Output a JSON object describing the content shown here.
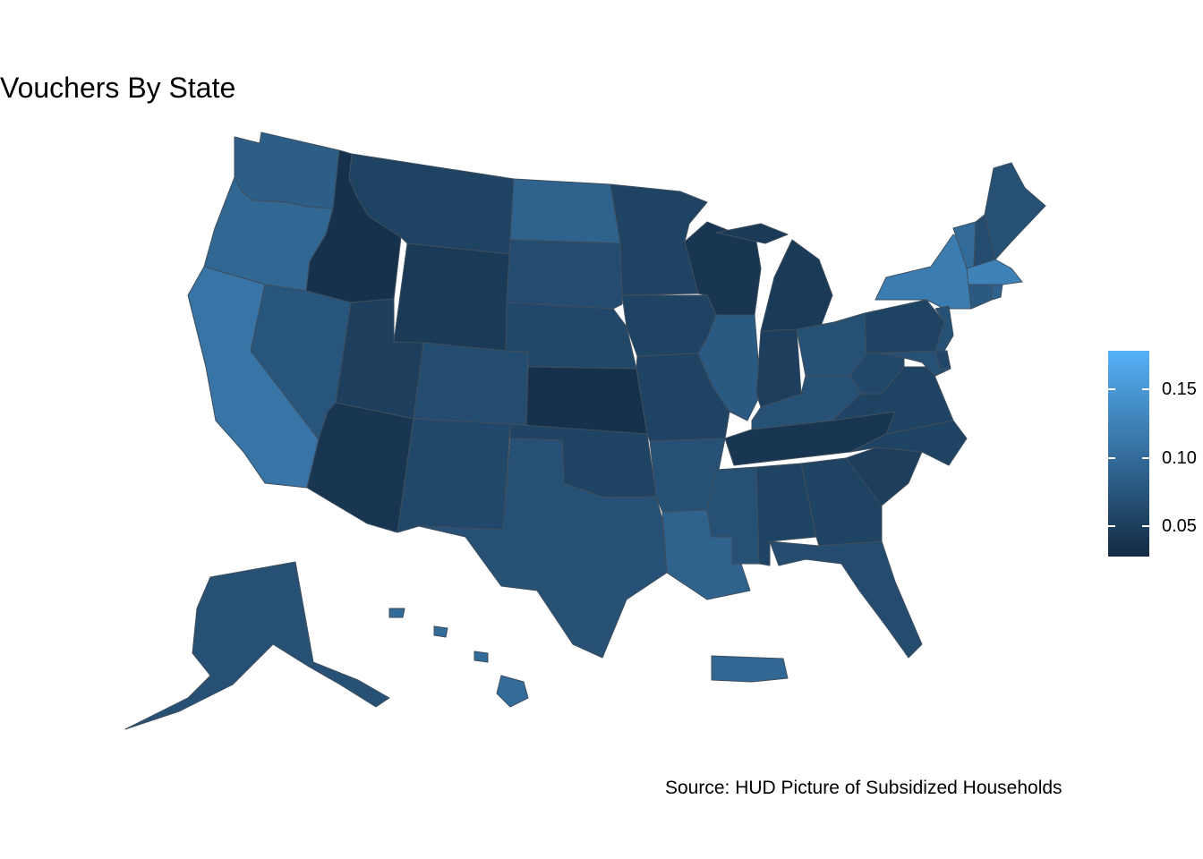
{
  "chart_data": {
    "type": "choropleth",
    "title": "Vouchers By State",
    "caption": "Source: HUD Picture of Subsidized Households",
    "legend": {
      "position": "right",
      "ticks": [
        "0.05",
        "0.10",
        "0.15"
      ],
      "tick_values": [
        0.05,
        0.1,
        0.15
      ],
      "range": [
        0.028,
        0.178
      ],
      "colors": {
        "low": "#132b43",
        "high": "#56b1f7"
      }
    },
    "states": [
      {
        "id": "WA",
        "value": 0.085
      },
      {
        "id": "OR",
        "value": 0.095
      },
      {
        "id": "CA",
        "value": 0.11
      },
      {
        "id": "NV",
        "value": 0.075
      },
      {
        "id": "ID",
        "value": 0.035
      },
      {
        "id": "MT",
        "value": 0.055
      },
      {
        "id": "WY",
        "value": 0.045
      },
      {
        "id": "UT",
        "value": 0.05
      },
      {
        "id": "AZ",
        "value": 0.04
      },
      {
        "id": "CO",
        "value": 0.065
      },
      {
        "id": "NM",
        "value": 0.06
      },
      {
        "id": "ND",
        "value": 0.09
      },
      {
        "id": "SD",
        "value": 0.065
      },
      {
        "id": "NE",
        "value": 0.06
      },
      {
        "id": "KS",
        "value": 0.035
      },
      {
        "id": "OK",
        "value": 0.055
      },
      {
        "id": "TX",
        "value": 0.07
      },
      {
        "id": "MN",
        "value": 0.055
      },
      {
        "id": "IA",
        "value": 0.055
      },
      {
        "id": "MO",
        "value": 0.055
      },
      {
        "id": "AR",
        "value": 0.07
      },
      {
        "id": "LA",
        "value": 0.09
      },
      {
        "id": "WI",
        "value": 0.04
      },
      {
        "id": "IL",
        "value": 0.08
      },
      {
        "id": "MI",
        "value": 0.045
      },
      {
        "id": "IN",
        "value": 0.05
      },
      {
        "id": "OH",
        "value": 0.07
      },
      {
        "id": "KY",
        "value": 0.07
      },
      {
        "id": "TN",
        "value": 0.04
      },
      {
        "id": "MS",
        "value": 0.07
      },
      {
        "id": "AL",
        "value": 0.055
      },
      {
        "id": "GA",
        "value": 0.055
      },
      {
        "id": "FL",
        "value": 0.065
      },
      {
        "id": "SC",
        "value": 0.05
      },
      {
        "id": "NC",
        "value": 0.055
      },
      {
        "id": "VA",
        "value": 0.055
      },
      {
        "id": "WV",
        "value": 0.06
      },
      {
        "id": "PA",
        "value": 0.055
      },
      {
        "id": "NY",
        "value": 0.12
      },
      {
        "id": "VT",
        "value": 0.1
      },
      {
        "id": "NH",
        "value": 0.065
      },
      {
        "id": "ME",
        "value": 0.07
      },
      {
        "id": "MA",
        "value": 0.125
      },
      {
        "id": "CT",
        "value": 0.08
      },
      {
        "id": "RI",
        "value": 0.09
      },
      {
        "id": "NJ",
        "value": 0.07
      },
      {
        "id": "DE",
        "value": 0.06
      },
      {
        "id": "MD",
        "value": 0.07
      },
      {
        "id": "AK",
        "value": 0.07
      },
      {
        "id": "HI",
        "value": 0.1
      },
      {
        "id": "PR",
        "value": 0.095
      }
    ]
  }
}
